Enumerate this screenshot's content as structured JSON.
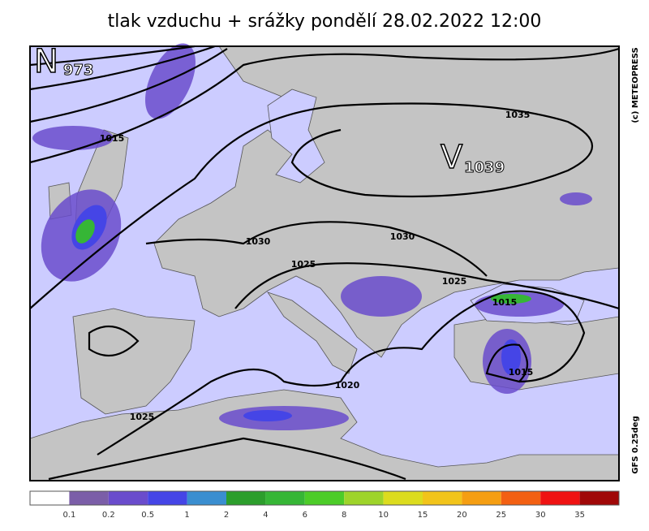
{
  "header": {
    "title": "tlak vzduchu + srážky pondělí 28.02.2022 12:00"
  },
  "credits": [
    "(c) METEOPRESS",
    "GFS 0.25deg"
  ],
  "centers": [
    {
      "letter": "N",
      "value": "973"
    },
    {
      "letter": "V",
      "value": "1039"
    }
  ],
  "isobar_labels": [
    "1015",
    "1035",
    "1030",
    "1030",
    "1025",
    "1025",
    "1015",
    "1015",
    "1020",
    "1025"
  ],
  "legend": {
    "labels": [
      "0.1",
      "0.2",
      "0.5",
      "1",
      "2",
      "4",
      "6",
      "8",
      "10",
      "15",
      "20",
      "25",
      "30",
      "35"
    ],
    "colors": [
      "#ffffff",
      "#7b5ea8",
      "#6a4ccc",
      "#4545e6",
      "#3a8ed0",
      "#2c9e2c",
      "#36b636",
      "#4ccc28",
      "#9ed42a",
      "#dcdc1e",
      "#f2c41a",
      "#f59e12",
      "#f36012",
      "#ef1212",
      "#a00808"
    ]
  }
}
